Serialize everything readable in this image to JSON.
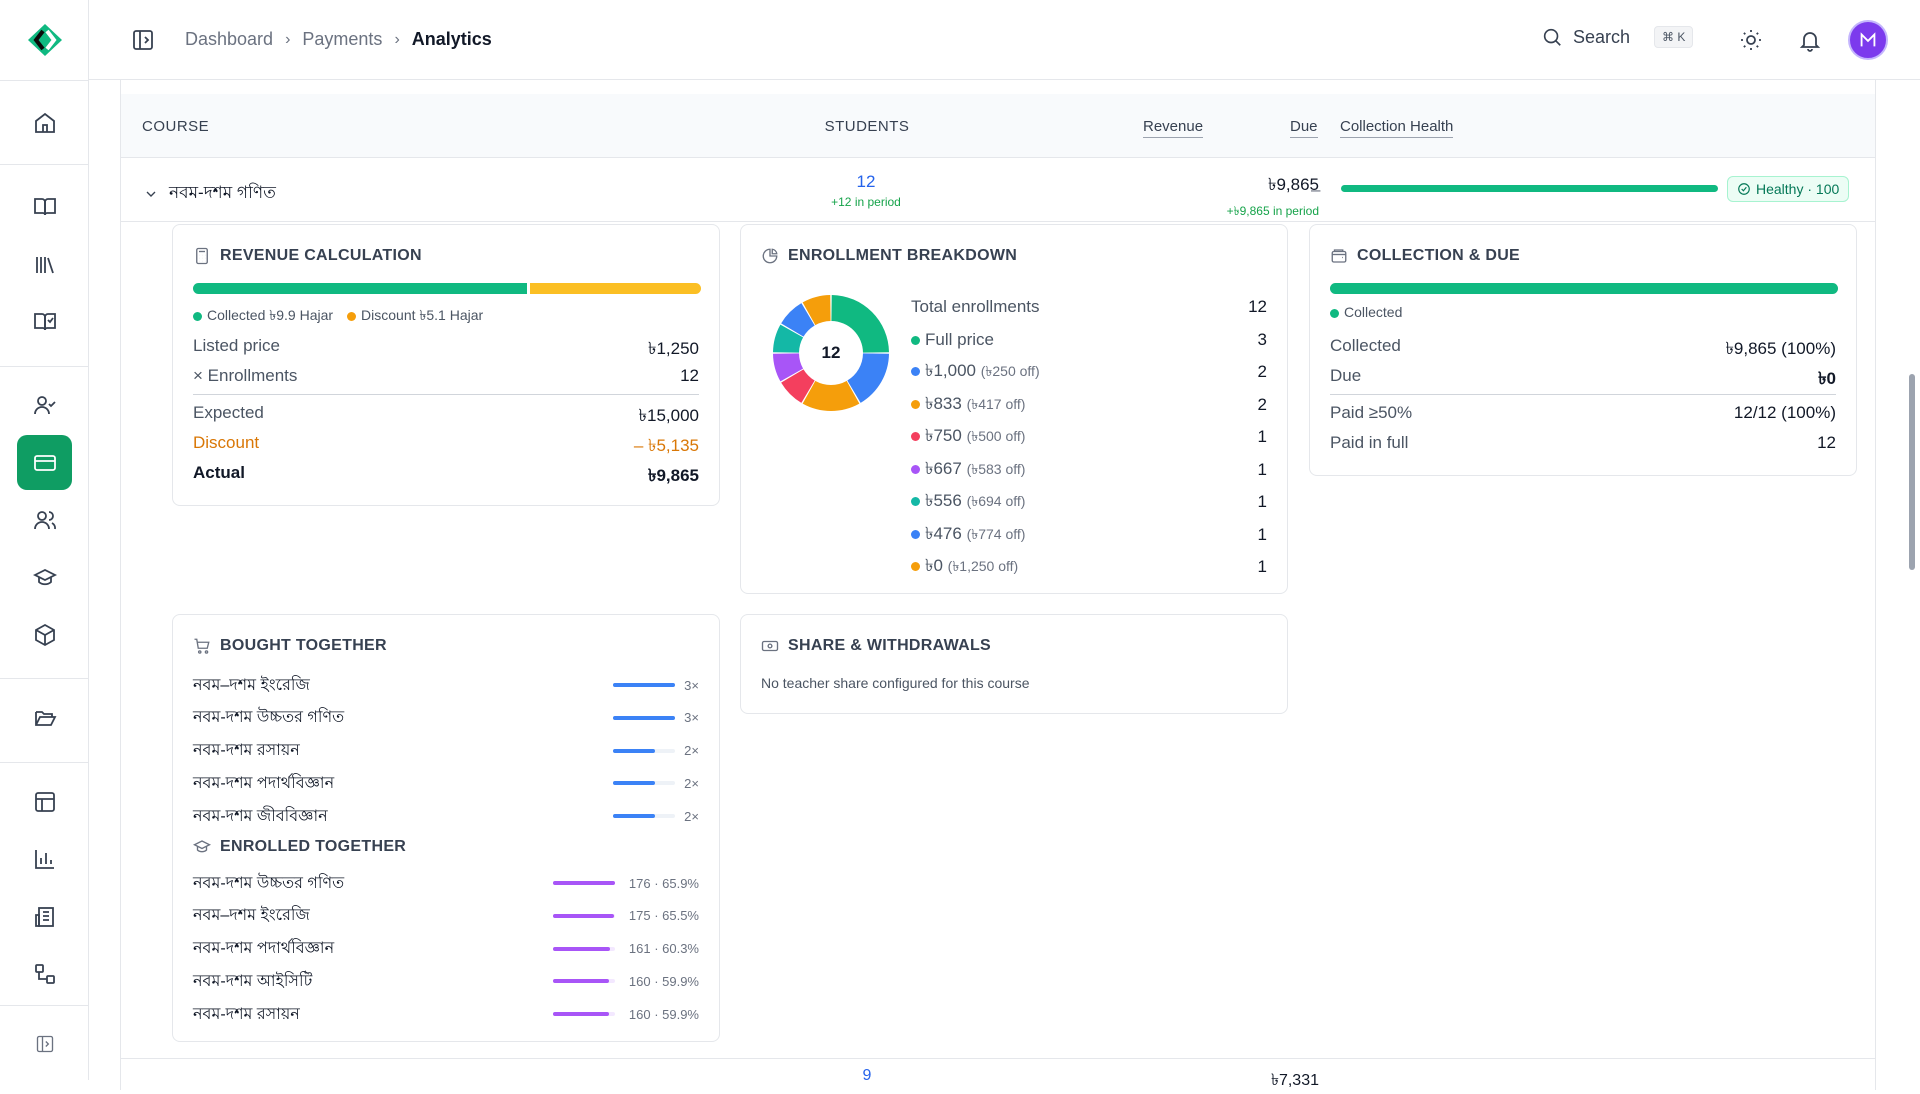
{
  "breadcrumb": {
    "items": [
      "Dashboard",
      "Payments"
    ],
    "current": "Analytics"
  },
  "search": {
    "label": "Search",
    "shortcut": "⌘ K"
  },
  "table": {
    "headers": {
      "course": "COURSE",
      "students": "STUDENTS",
      "revenue": "Revenue",
      "due": "Due",
      "health": "Collection Health"
    },
    "row": {
      "name": "নবম-দশম গণিত",
      "students": "12",
      "students_sub": "+12 in period",
      "revenue": "৳9,865",
      "revenue_sub": "+৳9,865 in period",
      "due": "–",
      "health_badge": "Healthy · 100",
      "health_value": 100
    }
  },
  "revenue_calc": {
    "title": "REVENUE CALCULATION",
    "collected_fraction": 0.658,
    "legend_collected": "Collected ৳9.9 Hajar",
    "legend_discount": "Discount ৳5.1 Hajar",
    "listed_label": "Listed price",
    "listed_value": "৳1,250",
    "enroll_label": "× Enrollments",
    "enroll_value": "12",
    "expected_label": "Expected",
    "expected_value": "৳15,000",
    "discount_label": "Discount",
    "discount_value": "– ৳5,135",
    "actual_label": "Actual",
    "actual_value": "৳9,865",
    "colors": {
      "collected": "#10b981",
      "discount": "#fbbf24"
    }
  },
  "enrollment": {
    "title": "ENROLLMENT BREAKDOWN",
    "center_label": "12",
    "total_label": "Total enrollments",
    "total_value": "12",
    "items": [
      {
        "label": "Full price",
        "off": "",
        "count": "3",
        "value": 3,
        "color": "#10b981"
      },
      {
        "label": "৳1,000",
        "off": "(৳250 off)",
        "count": "2",
        "value": 2,
        "color": "#3b82f6"
      },
      {
        "label": "৳833",
        "off": "(৳417 off)",
        "count": "2",
        "value": 2,
        "color": "#f59e0b"
      },
      {
        "label": "৳750",
        "off": "(৳500 off)",
        "count": "1",
        "value": 1,
        "color": "#f43f5e"
      },
      {
        "label": "৳667",
        "off": "(৳583 off)",
        "count": "1",
        "value": 1,
        "color": "#a855f7"
      },
      {
        "label": "৳556",
        "off": "(৳694 off)",
        "count": "1",
        "value": 1,
        "color": "#14b8a6"
      },
      {
        "label": "৳476",
        "off": "(৳774 off)",
        "count": "1",
        "value": 1,
        "color": "#3b82f6"
      },
      {
        "label": "৳0",
        "off": "(৳1,250 off)",
        "count": "1",
        "value": 1,
        "color": "#f59e0b"
      }
    ]
  },
  "collection": {
    "title": "COLLECTION & DUE",
    "collected_fraction": 1.0,
    "legend": "Collected",
    "collected_label": "Collected",
    "collected_value": "৳9,865 (100%)",
    "due_label": "Due",
    "due_value": "৳0",
    "paid50_label": "Paid ≥50%",
    "paid50_value": "12/12 (100%)",
    "paidfull_label": "Paid in full",
    "paidfull_value": "12"
  },
  "bought": {
    "title": "BOUGHT TOGETHER",
    "items": [
      {
        "name": "নবম–দশম ইংরেজি",
        "count": "3×",
        "fraction": 1.0
      },
      {
        "name": "নবম-দশম উচ্চতর গণিত",
        "count": "3×",
        "fraction": 1.0
      },
      {
        "name": "নবম-দশম রসায়ন",
        "count": "2×",
        "fraction": 0.67
      },
      {
        "name": "নবম-দশম পদার্থবিজ্ঞান",
        "count": "2×",
        "fraction": 0.67
      },
      {
        "name": "নবম-দশম জীববিজ্ঞান",
        "count": "2×",
        "fraction": 0.67
      }
    ]
  },
  "enrolled": {
    "title": "ENROLLED TOGETHER",
    "items": [
      {
        "name": "নবম-দশম উচ্চতর গণিত",
        "stat": "176 · 65.9%",
        "fraction": 1.0
      },
      {
        "name": "নবম–দশম ইংরেজি",
        "stat": "175 · 65.5%",
        "fraction": 0.99
      },
      {
        "name": "নবম-দশম পদার্থবিজ্ঞান",
        "stat": "161 · 60.3%",
        "fraction": 0.92
      },
      {
        "name": "নবম-দশম আইসিটি",
        "stat": "160 · 59.9%",
        "fraction": 0.91
      },
      {
        "name": "নবম-দশম রসায়ন",
        "stat": "160 · 59.9%",
        "fraction": 0.91
      }
    ]
  },
  "share": {
    "title": "SHARE & WITHDRAWALS",
    "message": "No teacher share configured for this course"
  },
  "next_row": {
    "students": "9",
    "revenue": "৳7,331"
  }
}
